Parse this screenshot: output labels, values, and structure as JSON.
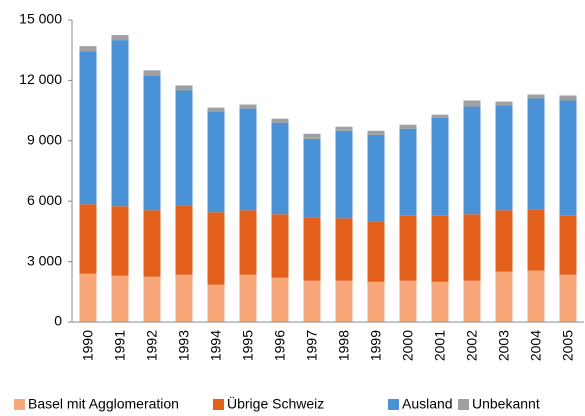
{
  "chart_data": {
    "type": "bar",
    "stacked": true,
    "categories": [
      "1990",
      "1991",
      "1992",
      "1993",
      "1994",
      "1995",
      "1996",
      "1997",
      "1998",
      "1999",
      "2000",
      "2001",
      "2002",
      "2003",
      "2004",
      "2005"
    ],
    "series": [
      {
        "name": "Basel mit Agglomeration",
        "color": "#f7a77a",
        "values": [
          2400,
          2300,
          2250,
          2350,
          1850,
          2350,
          2200,
          2050,
          2050,
          2000,
          2050,
          2000,
          2050,
          2500,
          2550,
          2350
        ]
      },
      {
        "name": "Übrige Schweiz",
        "color": "#e2601c",
        "values": [
          3450,
          3450,
          3300,
          3450,
          3600,
          3200,
          3150,
          3150,
          3100,
          3000,
          3250,
          3300,
          3300,
          3050,
          3050,
          2950
        ]
      },
      {
        "name": "Ausland",
        "color": "#4a91d6",
        "values": [
          7600,
          8250,
          6700,
          5700,
          5000,
          5050,
          4550,
          3900,
          4350,
          4300,
          4300,
          4850,
          5350,
          5200,
          5500,
          5700
        ]
      },
      {
        "name": "Unbekannt",
        "color": "#a0a0a0",
        "values": [
          250,
          250,
          250,
          250,
          200,
          200,
          200,
          250,
          200,
          200,
          200,
          150,
          300,
          200,
          200,
          250
        ]
      }
    ],
    "ylim": [
      0,
      15000
    ],
    "yticks": [
      0,
      {
        "value": 3000,
        "label": "3 000"
      },
      {
        "value": 6000,
        "label": "6 000"
      },
      {
        "value": 9000,
        "label": "9 000"
      },
      {
        "value": 12000,
        "label": "12 000"
      },
      {
        "value": 15000,
        "label": "15 000"
      }
    ],
    "grid": false
  }
}
